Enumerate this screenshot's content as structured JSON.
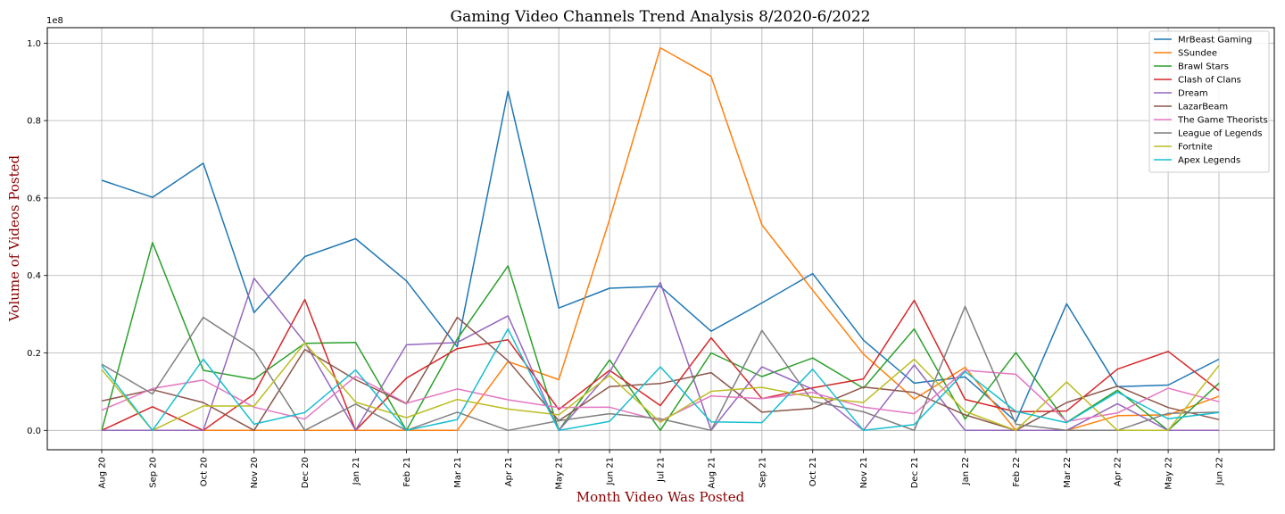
{
  "chart_data": {
    "type": "line",
    "title": "Gaming Video Channels Trend Analysis 8/2020-6/2022",
    "xlabel": "Month Video Was Posted",
    "ylabel": "Volume of Videos Posted",
    "y_offset_text": "1e8",
    "y_tick_labels": [
      "0.0",
      "0.2",
      "0.4",
      "0.6",
      "0.8",
      "1.0"
    ],
    "y_ticks": [
      0,
      20000000,
      40000000,
      60000000,
      80000000,
      100000000
    ],
    "ylim": [
      -5000000,
      104000000
    ],
    "grid": true,
    "legend_position": "top-right",
    "categories": [
      "Aug 20",
      "Sep 20",
      "Oct 20",
      "Nov 20",
      "Dec 20",
      "Jan 21",
      "Feb 21",
      "Mar 21",
      "Apr 21",
      "May 21",
      "Jun 21",
      "Jul 21",
      "Aug 21",
      "Sep 21",
      "Oct 21",
      "Nov 21",
      "Dec 21",
      "Jan 22",
      "Feb 22",
      "Mar 22",
      "Apr 22",
      "May 22",
      "Jun 22"
    ],
    "series": [
      {
        "name": "MrBeast Gaming",
        "color": "#1f77b4",
        "values": [
          64600000,
          60200000,
          69000000,
          30400000,
          44900000,
          49500000,
          38600000,
          21600000,
          87600000,
          31600000,
          36700000,
          37200000,
          25600000,
          32900000,
          40500000,
          23300000,
          12200000,
          13800000,
          2300000,
          32700000,
          11300000,
          11700000,
          18400000
        ]
      },
      {
        "name": "SSundee",
        "color": "#ff7f0e",
        "values": [
          0,
          0,
          0,
          0,
          0,
          0,
          0,
          0,
          17800000,
          13100000,
          54500000,
          98800000,
          91400000,
          53100000,
          36200000,
          19700000,
          8100000,
          16300000,
          0,
          0,
          3800000,
          4000000,
          8800000
        ]
      },
      {
        "name": "Brawl Stars",
        "color": "#2ca02c",
        "values": [
          0,
          48500000,
          15500000,
          13200000,
          22500000,
          22700000,
          0,
          23600000,
          42500000,
          0,
          18200000,
          0,
          20000000,
          13900000,
          18700000,
          10900000,
          26200000,
          2900000,
          20100000,
          2100000,
          10400000,
          0,
          12200000
        ]
      },
      {
        "name": "Clash of Clans",
        "color": "#d62728",
        "values": [
          0,
          6100000,
          0,
          9400000,
          33800000,
          0,
          13500000,
          21100000,
          23400000,
          5400000,
          15500000,
          6400000,
          23900000,
          8200000,
          11000000,
          13300000,
          33600000,
          8000000,
          4800000,
          5000000,
          15800000,
          20400000,
          10300000
        ]
      },
      {
        "name": "Dream",
        "color": "#9467bd",
        "values": [
          0,
          0,
          0,
          39300000,
          22700000,
          0,
          22100000,
          22700000,
          29600000,
          0,
          15000000,
          38200000,
          0,
          16400000,
          10600000,
          0,
          16900000,
          0,
          0,
          0,
          6900000,
          0,
          0
        ]
      },
      {
        "name": "LazarBeam",
        "color": "#8c564b",
        "values": [
          7600000,
          10500000,
          7200000,
          0,
          20900000,
          13100000,
          6900000,
          29200000,
          18000000,
          2500000,
          11300000,
          12100000,
          14900000,
          4700000,
          5700000,
          11200000,
          9800000,
          4000000,
          0,
          7200000,
          11400000,
          5900000,
          2800000
        ]
      },
      {
        "name": "The Game Theorists",
        "color": "#e377c2",
        "values": [
          5200000,
          10800000,
          13000000,
          6000000,
          2900000,
          14000000,
          7000000,
          10700000,
          7900000,
          5900000,
          6000000,
          2500000,
          8900000,
          8200000,
          9800000,
          6000000,
          4300000,
          15500000,
          14500000,
          2300000,
          4500000,
          10900000,
          7400000
        ]
      },
      {
        "name": "League of Legends",
        "color": "#7f7f7f",
        "values": [
          17100000,
          9400000,
          29200000,
          20600000,
          0,
          6800000,
          0,
          4700000,
          0,
          2500000,
          4300000,
          3000000,
          0,
          25800000,
          7500000,
          4800000,
          0,
          32000000,
          1600000,
          0,
          0,
          4400000,
          4700000
        ]
      },
      {
        "name": "Fortnite",
        "color": "#bcbd22",
        "values": [
          15700000,
          0,
          6300000,
          6300000,
          22600000,
          7300000,
          3300000,
          8000000,
          5500000,
          4000000,
          14200000,
          2100000,
          10100000,
          11100000,
          8600000,
          7200000,
          18400000,
          4900000,
          0,
          12500000,
          0,
          0,
          16800000
        ]
      },
      {
        "name": "Apex Legends",
        "color": "#17becf",
        "values": [
          16800000,
          0,
          18400000,
          1600000,
          4600000,
          15600000,
          0,
          2800000,
          26200000,
          0,
          2300000,
          16400000,
          2200000,
          2000000,
          15800000,
          0,
          1500000,
          15200000,
          4900000,
          2000000,
          9900000,
          3000000,
          4600000
        ]
      }
    ]
  }
}
